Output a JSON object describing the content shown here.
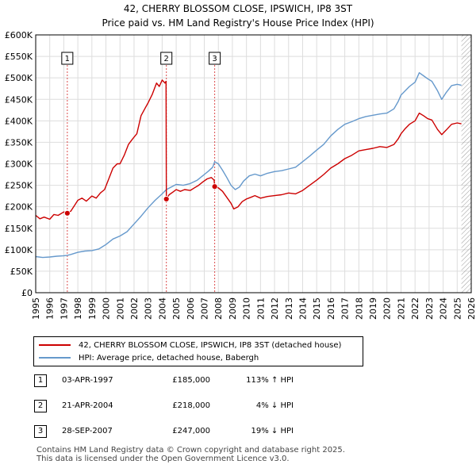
{
  "title_line1": "42, CHERRY BLOSSOM CLOSE, IPSWICH, IP8 3ST",
  "title_line2": "Price paid vs. HM Land Registry's House Price Index (HPI)",
  "colors": {
    "property": "#cc0000",
    "hpi": "#6699cc",
    "marker_line": "#cc0000",
    "grid": "#dddddd",
    "hatch": "#999999"
  },
  "chart_data": {
    "type": "line",
    "xlim": [
      1995,
      2026
    ],
    "ylim": [
      0,
      600000
    ],
    "x_ticks": [
      "1995",
      "1996",
      "1997",
      "1998",
      "1999",
      "2000",
      "2001",
      "2002",
      "2003",
      "2004",
      "2005",
      "2006",
      "2007",
      "2008",
      "2009",
      "2010",
      "2011",
      "2012",
      "2013",
      "2014",
      "2015",
      "2016",
      "2017",
      "2018",
      "2019",
      "2020",
      "2021",
      "2022",
      "2023",
      "2024",
      "2025",
      "2026"
    ],
    "y_ticks": [
      {
        "value": 0,
        "label": "£0"
      },
      {
        "value": 50000,
        "label": "£50K"
      },
      {
        "value": 100000,
        "label": "£100K"
      },
      {
        "value": 150000,
        "label": "£150K"
      },
      {
        "value": 200000,
        "label": "£200K"
      },
      {
        "value": 250000,
        "label": "£250K"
      },
      {
        "value": 300000,
        "label": "£300K"
      },
      {
        "value": 350000,
        "label": "£350K"
      },
      {
        "value": 400000,
        "label": "£400K"
      },
      {
        "value": 450000,
        "label": "£450K"
      },
      {
        "value": 500000,
        "label": "£500K"
      },
      {
        "value": 550000,
        "label": "£550K"
      },
      {
        "value": 600000,
        "label": "£600K"
      }
    ],
    "forecast_start": 2025.3,
    "series": [
      {
        "name": "42, CHERRY BLOSSOM CLOSE, IPSWICH, IP8 3ST (detached house)",
        "color": "#cc0000",
        "points": [
          [
            1995.0,
            180000
          ],
          [
            1995.3,
            172000
          ],
          [
            1995.6,
            176000
          ],
          [
            1996.0,
            171000
          ],
          [
            1996.3,
            182000
          ],
          [
            1996.6,
            180000
          ],
          [
            1997.0,
            188000
          ],
          [
            1997.25,
            185000
          ],
          [
            1997.5,
            190000
          ],
          [
            1997.8,
            205000
          ],
          [
            1998.0,
            215000
          ],
          [
            1998.3,
            220000
          ],
          [
            1998.6,
            213000
          ],
          [
            1999.0,
            225000
          ],
          [
            1999.3,
            220000
          ],
          [
            1999.6,
            232000
          ],
          [
            1999.9,
            240000
          ],
          [
            2000.2,
            265000
          ],
          [
            2000.5,
            290000
          ],
          [
            2000.8,
            300000
          ],
          [
            2001.0,
            300000
          ],
          [
            2001.3,
            320000
          ],
          [
            2001.6,
            345000
          ],
          [
            2001.9,
            358000
          ],
          [
            2002.2,
            370000
          ],
          [
            2002.5,
            412000
          ],
          [
            2002.8,
            430000
          ],
          [
            2003.0,
            442000
          ],
          [
            2003.3,
            462000
          ],
          [
            2003.6,
            488000
          ],
          [
            2003.8,
            480000
          ],
          [
            2004.0,
            495000
          ],
          [
            2004.2,
            488000
          ],
          [
            2004.28,
            492000
          ],
          [
            2004.3,
            218000
          ],
          [
            2004.5,
            228000
          ],
          [
            2004.8,
            235000
          ],
          [
            2005.0,
            240000
          ],
          [
            2005.3,
            236000
          ],
          [
            2005.6,
            240000
          ],
          [
            2006.0,
            238000
          ],
          [
            2006.3,
            244000
          ],
          [
            2006.6,
            250000
          ],
          [
            2006.9,
            258000
          ],
          [
            2007.2,
            265000
          ],
          [
            2007.5,
            268000
          ],
          [
            2007.7,
            262000
          ],
          [
            2007.74,
            247000
          ],
          [
            2008.0,
            244000
          ],
          [
            2008.3,
            236000
          ],
          [
            2008.6,
            222000
          ],
          [
            2008.9,
            208000
          ],
          [
            2009.1,
            195000
          ],
          [
            2009.4,
            200000
          ],
          [
            2009.7,
            212000
          ],
          [
            2010.0,
            218000
          ],
          [
            2010.3,
            222000
          ],
          [
            2010.6,
            226000
          ],
          [
            2011.0,
            220000
          ],
          [
            2011.5,
            224000
          ],
          [
            2012.0,
            226000
          ],
          [
            2012.5,
            228000
          ],
          [
            2013.0,
            232000
          ],
          [
            2013.5,
            230000
          ],
          [
            2014.0,
            238000
          ],
          [
            2014.5,
            250000
          ],
          [
            2015.0,
            262000
          ],
          [
            2015.5,
            275000
          ],
          [
            2016.0,
            290000
          ],
          [
            2016.5,
            300000
          ],
          [
            2017.0,
            312000
          ],
          [
            2017.5,
            320000
          ],
          [
            2018.0,
            330000
          ],
          [
            2018.5,
            333000
          ],
          [
            2019.0,
            336000
          ],
          [
            2019.5,
            340000
          ],
          [
            2020.0,
            338000
          ],
          [
            2020.5,
            345000
          ],
          [
            2020.8,
            358000
          ],
          [
            2021.0,
            370000
          ],
          [
            2021.3,
            382000
          ],
          [
            2021.6,
            392000
          ],
          [
            2022.0,
            400000
          ],
          [
            2022.3,
            418000
          ],
          [
            2022.6,
            412000
          ],
          [
            2022.9,
            405000
          ],
          [
            2023.2,
            402000
          ],
          [
            2023.6,
            380000
          ],
          [
            2023.9,
            368000
          ],
          [
            2024.2,
            378000
          ],
          [
            2024.6,
            392000
          ],
          [
            2025.0,
            395000
          ],
          [
            2025.3,
            393000
          ]
        ]
      },
      {
        "name": "HPI: Average price, detached house, Babergh",
        "color": "#6699cc",
        "points": [
          [
            1995.0,
            84000
          ],
          [
            1995.5,
            82000
          ],
          [
            1996.0,
            83000
          ],
          [
            1996.5,
            85000
          ],
          [
            1997.0,
            86000
          ],
          [
            1997.25,
            87000
          ],
          [
            1997.5,
            89000
          ],
          [
            1998.0,
            94000
          ],
          [
            1998.5,
            97000
          ],
          [
            1999.0,
            98000
          ],
          [
            1999.5,
            102000
          ],
          [
            2000.0,
            112000
          ],
          [
            2000.5,
            125000
          ],
          [
            2001.0,
            132000
          ],
          [
            2001.5,
            142000
          ],
          [
            2002.0,
            160000
          ],
          [
            2002.5,
            178000
          ],
          [
            2003.0,
            198000
          ],
          [
            2003.5,
            215000
          ],
          [
            2004.0,
            230000
          ],
          [
            2004.3,
            240000
          ],
          [
            2004.6,
            245000
          ],
          [
            2005.0,
            252000
          ],
          [
            2005.5,
            250000
          ],
          [
            2006.0,
            254000
          ],
          [
            2006.5,
            262000
          ],
          [
            2007.0,
            275000
          ],
          [
            2007.3,
            283000
          ],
          [
            2007.6,
            292000
          ],
          [
            2007.74,
            305000
          ],
          [
            2008.0,
            300000
          ],
          [
            2008.3,
            285000
          ],
          [
            2008.6,
            268000
          ],
          [
            2008.9,
            250000
          ],
          [
            2009.2,
            240000
          ],
          [
            2009.5,
            246000
          ],
          [
            2009.8,
            260000
          ],
          [
            2010.2,
            272000
          ],
          [
            2010.6,
            276000
          ],
          [
            2011.0,
            272000
          ],
          [
            2011.5,
            278000
          ],
          [
            2012.0,
            282000
          ],
          [
            2012.5,
            284000
          ],
          [
            2013.0,
            288000
          ],
          [
            2013.5,
            292000
          ],
          [
            2014.0,
            305000
          ],
          [
            2014.5,
            318000
          ],
          [
            2015.0,
            332000
          ],
          [
            2015.5,
            345000
          ],
          [
            2016.0,
            365000
          ],
          [
            2016.5,
            380000
          ],
          [
            2017.0,
            392000
          ],
          [
            2017.5,
            398000
          ],
          [
            2018.0,
            405000
          ],
          [
            2018.5,
            410000
          ],
          [
            2019.0,
            413000
          ],
          [
            2019.5,
            416000
          ],
          [
            2020.0,
            418000
          ],
          [
            2020.5,
            428000
          ],
          [
            2020.8,
            445000
          ],
          [
            2021.0,
            460000
          ],
          [
            2021.3,
            470000
          ],
          [
            2021.6,
            480000
          ],
          [
            2022.0,
            490000
          ],
          [
            2022.3,
            512000
          ],
          [
            2022.6,
            505000
          ],
          [
            2022.9,
            498000
          ],
          [
            2023.2,
            492000
          ],
          [
            2023.6,
            470000
          ],
          [
            2023.9,
            450000
          ],
          [
            2024.2,
            465000
          ],
          [
            2024.6,
            482000
          ],
          [
            2025.0,
            485000
          ],
          [
            2025.3,
            483000
          ]
        ]
      }
    ],
    "sales": [
      {
        "num": "1",
        "x": 1997.25,
        "y": 185000
      },
      {
        "num": "2",
        "x": 2004.3,
        "y": 218000
      },
      {
        "num": "3",
        "x": 2007.74,
        "y": 247000
      }
    ]
  },
  "legend": {
    "property_label": "42, CHERRY BLOSSOM CLOSE, IPSWICH, IP8 3ST (detached house)",
    "hpi_label": "HPI: Average price, detached house, Babergh"
  },
  "sales_table": [
    {
      "num": "1",
      "date": "03-APR-1997",
      "price": "£185,000",
      "hpi": "113% ↑ HPI"
    },
    {
      "num": "2",
      "date": "21-APR-2004",
      "price": "£218,000",
      "hpi": "4% ↓ HPI"
    },
    {
      "num": "3",
      "date": "28-SEP-2007",
      "price": "£247,000",
      "hpi": "19% ↓ HPI"
    }
  ],
  "footer": {
    "line1": "Contains HM Land Registry data © Crown copyright and database right 2025.",
    "line2": "This data is licensed under the Open Government Licence v3.0."
  }
}
